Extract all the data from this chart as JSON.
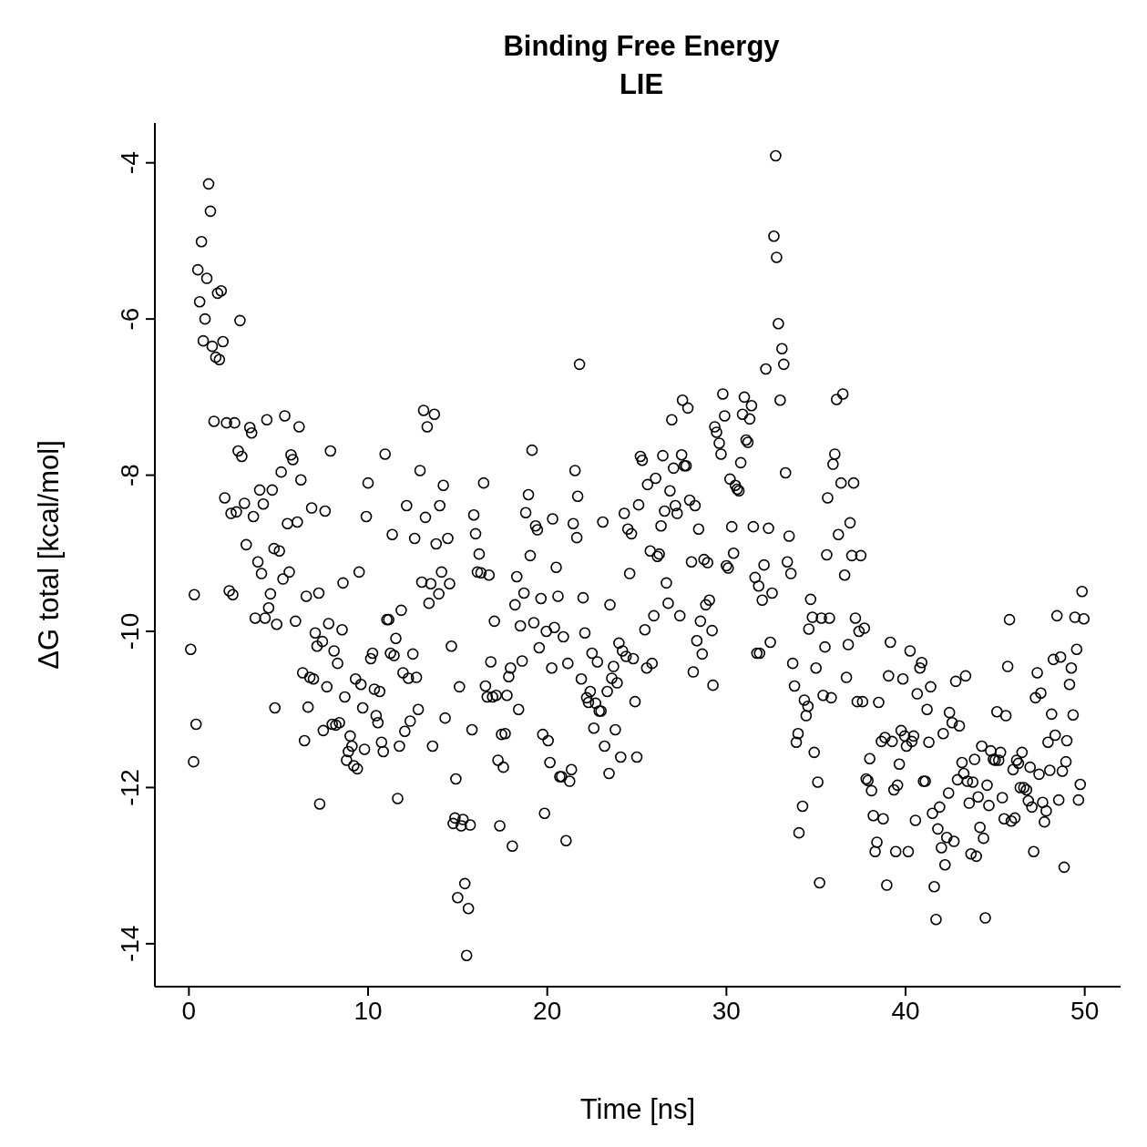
{
  "chart_data": {
    "type": "scatter",
    "title": "Binding Free Energy\nLIE",
    "xlabel": "Time [ns]",
    "ylabel": "ΔG total [kcal/mol]",
    "color": "#000000",
    "marker": "circle",
    "grid": false,
    "xlim": [
      -1.9,
      52
    ],
    "ylim": [
      -14.55,
      -3.49
    ],
    "xticks": [
      0,
      10,
      20,
      30,
      40,
      50
    ],
    "yticks": [
      -14,
      -12,
      -10,
      -8,
      -6,
      -4
    ],
    "x": [
      0.1,
      0.26,
      0.3,
      0.4,
      0.5,
      0.6,
      0.7,
      0.8,
      0.9,
      1.0,
      1.1,
      1.2,
      1.3,
      1.4,
      1.5,
      1.6,
      1.7,
      1.8,
      1.9,
      2.0,
      2.1,
      2.25,
      2.35,
      2.45,
      2.55,
      2.65,
      2.75,
      2.85,
      2.95,
      3.1,
      3.2,
      3.4,
      3.5,
      3.6,
      3.7,
      3.85,
      3.95,
      4.05,
      4.15,
      4.25,
      4.35,
      4.45,
      4.55,
      4.65,
      4.75,
      4.8,
      4.9,
      5.05,
      5.15,
      5.25,
      5.35,
      5.5,
      5.6,
      5.7,
      5.8,
      5.95,
      6.05,
      6.15,
      6.25,
      6.35,
      6.45,
      6.55,
      6.65,
      6.75,
      6.85,
      6.95,
      7.05,
      7.15,
      7.25,
      7.3,
      7.45,
      7.5,
      7.6,
      7.7,
      7.8,
      7.9,
      8.0,
      8.1,
      8.2,
      8.3,
      8.4,
      8.55,
      8.6,
      8.7,
      8.8,
      8.9,
      9.0,
      9.1,
      9.2,
      9.3,
      9.4,
      9.5,
      9.6,
      9.7,
      9.8,
      9.9,
      10.0,
      10.15,
      10.25,
      10.35,
      10.45,
      10.55,
      10.65,
      10.75,
      10.85,
      10.95,
      11.05,
      11.15,
      11.25,
      11.35,
      11.45,
      11.55,
      11.65,
      11.75,
      11.85,
      11.95,
      12.05,
      12.15,
      12.25,
      12.35,
      12.5,
      12.6,
      12.7,
      12.8,
      12.9,
      13.0,
      13.1,
      13.2,
      13.3,
      13.4,
      13.5,
      13.6,
      13.7,
      13.8,
      13.95,
      14.0,
      14.1,
      14.2,
      14.3,
      14.45,
      14.55,
      14.65,
      14.75,
      14.85,
      14.9,
      15.0,
      15.1,
      15.2,
      15.3,
      15.4,
      15.5,
      15.6,
      15.7,
      15.8,
      15.9,
      16.0,
      16.1,
      16.2,
      16.3,
      16.45,
      16.55,
      16.65,
      16.75,
      16.85,
      16.95,
      17.05,
      17.15,
      17.25,
      17.35,
      17.45,
      17.55,
      17.65,
      17.75,
      17.85,
      17.95,
      18.05,
      18.2,
      18.3,
      18.4,
      18.5,
      18.6,
      18.7,
      18.8,
      18.95,
      19.05,
      19.15,
      19.25,
      19.35,
      19.45,
      19.55,
      19.65,
      19.75,
      19.85,
      19.95,
      20.05,
      20.15,
      20.25,
      20.3,
      20.4,
      20.5,
      20.6,
      20.7,
      20.8,
      20.9,
      21.05,
      21.15,
      21.25,
      21.35,
      21.45,
      21.55,
      21.65,
      21.7,
      21.8,
      21.9,
      22.0,
      22.1,
      22.2,
      22.3,
      22.4,
      22.5,
      22.6,
      22.7,
      22.8,
      22.9,
      23.0,
      23.1,
      23.2,
      23.35,
      23.45,
      23.5,
      23.6,
      23.7,
      23.8,
      23.9,
      24.0,
      24.1,
      24.2,
      24.3,
      24.4,
      24.5,
      24.6,
      24.7,
      24.8,
      24.9,
      25.0,
      25.1,
      25.2,
      25.3,
      25.45,
      25.55,
      25.6,
      25.75,
      25.85,
      25.95,
      26.05,
      26.15,
      26.25,
      26.35,
      26.45,
      26.55,
      26.65,
      26.75,
      26.85,
      26.95,
      27.05,
      27.15,
      27.25,
      27.4,
      27.5,
      27.55,
      27.65,
      27.75,
      27.85,
      27.95,
      28.05,
      28.15,
      28.25,
      28.35,
      28.45,
      28.55,
      28.65,
      28.75,
      28.85,
      28.95,
      29.05,
      29.2,
      29.25,
      29.35,
      29.45,
      29.6,
      29.7,
      29.8,
      29.9,
      30.0,
      30.1,
      30.2,
      30.3,
      30.4,
      30.5,
      30.6,
      30.7,
      30.8,
      30.9,
      31.0,
      31.1,
      31.2,
      31.3,
      31.4,
      31.5,
      31.6,
      31.7,
      31.8,
      31.85,
      32.0,
      32.1,
      32.2,
      32.35,
      32.45,
      32.55,
      32.65,
      32.75,
      32.8,
      32.9,
      33.0,
      33.1,
      33.2,
      33.3,
      33.4,
      33.5,
      33.6,
      33.7,
      33.8,
      33.9,
      34.0,
      34.05,
      34.25,
      34.35,
      34.45,
      34.55,
      34.6,
      34.7,
      34.8,
      34.9,
      35.0,
      35.1,
      35.2,
      35.3,
      35.4,
      35.5,
      35.6,
      35.65,
      35.75,
      35.85,
      35.95,
      36.05,
      36.15,
      36.25,
      36.4,
      36.5,
      36.6,
      36.7,
      36.8,
      36.9,
      37.0,
      37.1,
      37.2,
      37.3,
      37.4,
      37.5,
      37.6,
      37.7,
      37.8,
      37.9,
      38.0,
      38.1,
      38.2,
      38.3,
      38.4,
      38.5,
      38.65,
      38.75,
      38.85,
      38.95,
      39.05,
      39.15,
      39.25,
      39.35,
      39.45,
      39.55,
      39.65,
      39.75,
      39.85,
      39.95,
      40.05,
      40.15,
      40.25,
      40.35,
      40.45,
      40.55,
      40.65,
      40.8,
      40.9,
      41.0,
      41.1,
      41.2,
      41.3,
      41.4,
      41.5,
      41.6,
      41.7,
      41.8,
      41.9,
      42.0,
      42.1,
      42.2,
      42.3,
      42.4,
      42.45,
      42.6,
      42.7,
      42.8,
      42.9,
      43.0,
      43.15,
      43.25,
      43.35,
      43.45,
      43.55,
      43.65,
      43.75,
      43.85,
      43.95,
      44.05,
      44.15,
      44.25,
      44.35,
      44.45,
      44.55,
      44.65,
      44.75,
      44.9,
      45.0,
      45.1,
      45.2,
      45.3,
      45.4,
      45.5,
      45.6,
      45.7,
      45.8,
      45.9,
      46.0,
      46.1,
      46.2,
      46.3,
      46.4,
      46.5,
      46.6,
      46.75,
      46.85,
      46.95,
      47.05,
      47.15,
      47.25,
      47.35,
      47.45,
      47.55,
      47.65,
      47.75,
      47.85,
      47.95,
      48.05,
      48.15,
      48.25,
      48.35,
      48.45,
      48.55,
      48.65,
      48.75,
      48.85,
      48.95,
      49.0,
      49.15,
      49.25,
      49.35,
      49.45,
      49.55,
      49.65,
      49.75,
      49.85,
      49.95
    ],
    "values": [
      -10.23,
      -11.67,
      -9.53,
      -11.19,
      -5.37,
      -5.78,
      -5.01,
      -6.28,
      -6.0,
      -5.48,
      -4.27,
      -4.62,
      -6.35,
      -7.31,
      -6.49,
      -5.67,
      -6.52,
      -5.64,
      -6.29,
      -8.29,
      -7.33,
      -9.48,
      -8.49,
      -9.53,
      -7.33,
      -8.47,
      -7.69,
      -6.02,
      -7.76,
      -8.36,
      -8.89,
      -7.39,
      -7.46,
      -8.53,
      -9.83,
      -9.11,
      -8.19,
      -9.26,
      -8.37,
      -9.83,
      -7.29,
      -9.7,
      -9.52,
      -8.19,
      -8.94,
      -10.98,
      -9.91,
      -8.97,
      -7.96,
      -9.33,
      -7.24,
      -8.62,
      -9.24,
      -7.74,
      -7.8,
      -9.87,
      -8.6,
      -7.38,
      -8.06,
      -10.53,
      -11.4,
      -9.55,
      -10.97,
      -10.59,
      -8.42,
      -10.61,
      -10.02,
      -10.19,
      -9.51,
      -12.21,
      -10.13,
      -11.27,
      -8.46,
      -10.71,
      -9.9,
      -7.69,
      -11.19,
      -10.25,
      -11.2,
      -10.41,
      -11.17,
      -9.98,
      -9.38,
      -10.84,
      -11.65,
      -11.54,
      -11.34,
      -11.47,
      -11.72,
      -10.61,
      -11.76,
      -9.24,
      -10.68,
      -10.98,
      -11.51,
      -8.53,
      -8.1,
      -10.35,
      -10.28,
      -10.74,
      -11.08,
      -11.17,
      -10.77,
      -11.42,
      -11.54,
      -7.73,
      -9.85,
      -9.85,
      -10.28,
      -8.76,
      -10.31,
      -10.09,
      -12.14,
      -11.47,
      -9.73,
      -10.53,
      -11.28,
      -8.39,
      -10.6,
      -11.15,
      -10.29,
      -8.81,
      -10.59,
      -11.0,
      -7.94,
      -9.37,
      -7.17,
      -8.54,
      -7.38,
      -9.64,
      -9.39,
      -11.47,
      -7.22,
      -8.88,
      -9.52,
      -8.39,
      -9.24,
      -8.13,
      -11.11,
      -8.81,
      -9.39,
      -10.19,
      -12.46,
      -12.39,
      -11.89,
      -13.41,
      -10.71,
      -12.49,
      -12.41,
      -13.23,
      -14.15,
      -13.55,
      -12.48,
      -11.26,
      -8.51,
      -8.75,
      -9.24,
      -9.01,
      -9.25,
      -8.1,
      -10.7,
      -10.84,
      -9.28,
      -10.39,
      -10.84,
      -9.87,
      -10.82,
      -11.65,
      -12.49,
      -11.32,
      -11.74,
      -11.31,
      -10.82,
      -10.58,
      -10.47,
      -12.75,
      -9.66,
      -9.3,
      -11.0,
      -9.93,
      -10.38,
      -9.51,
      -8.48,
      -8.25,
      -9.03,
      -7.68,
      -9.89,
      -8.65,
      -8.7,
      -10.21,
      -9.58,
      -11.32,
      -12.33,
      -10.0,
      -11.4,
      -11.68,
      -10.47,
      -8.56,
      -9.95,
      -9.18,
      -9.55,
      -11.86,
      -11.86,
      -10.07,
      -12.68,
      -10.41,
      -11.92,
      -11.77,
      -8.62,
      -7.94,
      -8.8,
      -8.27,
      -6.58,
      -10.61,
      -9.57,
      -10.02,
      -10.85,
      -10.91,
      -10.77,
      -10.28,
      -11.24,
      -10.92,
      -10.39,
      -11.02,
      -11.02,
      -8.6,
      -11.47,
      -10.77,
      -11.82,
      -9.66,
      -10.6,
      -10.45,
      -11.26,
      -10.66,
      -10.15,
      -11.61,
      -10.25,
      -8.49,
      -10.32,
      -8.69,
      -9.26,
      -8.75,
      -10.35,
      -10.9,
      -11.61,
      -8.38,
      -7.76,
      -7.81,
      -9.98,
      -10.47,
      -8.12,
      -8.97,
      -10.41,
      -9.8,
      -8.04,
      -9.04,
      -9.01,
      -8.65,
      -7.75,
      -8.46,
      -9.38,
      -9.64,
      -8.2,
      -7.29,
      -7.91,
      -8.39,
      -8.49,
      -9.8,
      -7.74,
      -7.04,
      -7.88,
      -7.88,
      -7.14,
      -8.32,
      -9.11,
      -10.52,
      -8.39,
      -10.12,
      -8.69,
      -9.87,
      -10.29,
      -9.08,
      -9.66,
      -9.12,
      -9.6,
      -9.99,
      -10.69,
      -7.38,
      -7.45,
      -7.59,
      -7.73,
      -6.96,
      -7.24,
      -9.16,
      -9.19,
      -8.05,
      -8.66,
      -9.0,
      -8.13,
      -8.18,
      -8.2,
      -7.84,
      -7.22,
      -7.0,
      -7.55,
      -7.58,
      -7.28,
      -7.11,
      -8.66,
      -9.31,
      -10.28,
      -9.42,
      -10.28,
      -9.6,
      -9.15,
      -6.64,
      -8.68,
      -10.14,
      -9.51,
      -4.94,
      -3.91,
      -5.21,
      -6.06,
      -7.04,
      -6.38,
      -6.58,
      -7.97,
      -9.11,
      -8.78,
      -9.26,
      -10.41,
      -10.7,
      -11.42,
      -11.31,
      -12.58,
      -12.24,
      -10.88,
      -11.08,
      -10.96,
      -9.97,
      -9.59,
      -9.82,
      -11.55,
      -10.47,
      -11.93,
      -13.22,
      -9.83,
      -10.82,
      -10.2,
      -9.02,
      -8.29,
      -9.83,
      -10.85,
      -7.86,
      -7.73,
      -7.03,
      -8.76,
      -8.1,
      -6.96,
      -9.28,
      -10.59,
      -10.17,
      -8.61,
      -9.03,
      -8.1,
      -9.83,
      -10.9,
      -10.0,
      -9.03,
      -10.9,
      -9.96,
      -11.89,
      -11.91,
      -11.63,
      -12.04,
      -12.36,
      -12.82,
      -12.7,
      -10.91,
      -11.41,
      -12.4,
      -11.36,
      -13.25,
      -10.57,
      -10.14,
      -11.41,
      -12.03,
      -12.82,
      -11.97,
      -11.7,
      -11.27,
      -10.61,
      -11.34,
      -11.47,
      -12.82,
      -10.25,
      -11.41,
      -11.34,
      -12.42,
      -10.8,
      -10.47,
      -10.4,
      -11.92,
      -11.92,
      -11.0,
      -11.42,
      -10.71,
      -12.33,
      -13.27,
      -13.69,
      -12.53,
      -12.25,
      -12.77,
      -11.31,
      -12.99,
      -12.64,
      -12.07,
      -11.04,
      -11.17,
      -12.69,
      -10.64,
      -11.9,
      -11.21,
      -11.68,
      -11.82,
      -10.57,
      -11.92,
      -12.2,
      -12.85,
      -11.93,
      -11.64,
      -12.88,
      -12.12,
      -12.51,
      -11.47,
      -12.65,
      -13.67,
      -11.97,
      -12.23,
      -11.53,
      -11.64,
      -11.65,
      -11.03,
      -11.65,
      -11.55,
      -12.13,
      -12.4,
      -11.08,
      -10.45,
      -9.85,
      -12.43,
      -11.77,
      -12.39,
      -11.65,
      -11.69,
      -12.0,
      -11.55,
      -12.0,
      -12.03,
      -12.17,
      -11.74,
      -12.25,
      -12.82,
      -10.85,
      -10.53,
      -11.83,
      -10.79,
      -12.19,
      -12.44,
      -12.3,
      -11.42,
      -11.78,
      -11.06,
      -10.36,
      -11.33,
      -9.8,
      -12.16,
      -10.33,
      -11.79,
      -13.02,
      -11.67,
      -11.4,
      -10.68,
      -10.47,
      -11.07,
      -9.82,
      -10.23,
      -12.16,
      -11.96,
      -9.49,
      -9.84
    ]
  }
}
